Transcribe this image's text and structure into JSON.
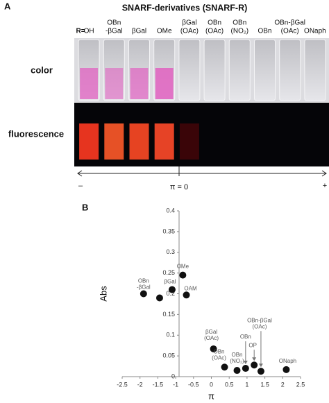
{
  "panel_a": {
    "label": "A",
    "title": "SNARF-derivatives (SNARF-R)",
    "r_label": "R=",
    "substituents": [
      [
        "OH"
      ],
      [
        "OBn",
        "-βGal"
      ],
      [
        "βGal"
      ],
      [
        "OMe"
      ],
      [
        "βGal",
        "(OAc)"
      ],
      [
        "OBn",
        "(OAc)"
      ],
      [
        "OBn",
        "(NO₂)"
      ],
      [
        "OBn"
      ],
      [
        "OBn-βGal",
        "(OAc)"
      ],
      [
        "ONaph"
      ]
    ],
    "row_labels": [
      "color",
      "fluorescence"
    ],
    "axis": {
      "minus": "–",
      "center": "π = 0",
      "plus": "+"
    }
  },
  "panel_b": {
    "label": "B"
  },
  "chart_data": {
    "type": "scatter",
    "xlabel": "π",
    "ylabel": "Abs",
    "color": "#111111",
    "x": [
      -1.9,
      -1.45,
      -1.1,
      -0.8,
      -0.7,
      0.06,
      0.37,
      0.72,
      0.96,
      1.2,
      1.39,
      2.1
    ],
    "values": [
      0.2,
      0.19,
      0.21,
      0.245,
      0.197,
      0.067,
      0.023,
      0.015,
      0.02,
      0.028,
      0.013,
      0.017
    ],
    "labels": [
      [
        "OBn",
        "-βGal"
      ],
      null,
      [
        "βGal"
      ],
      [
        "OMe"
      ],
      [
        "OAM"
      ],
      [
        "βGal",
        "(OAc)"
      ],
      [
        "OBn",
        "(OAc)"
      ],
      [
        "OBn",
        "(NO₂)"
      ],
      [
        "OBn"
      ],
      [
        "OP"
      ],
      [
        "OBn-βGal",
        "(OAc)"
      ],
      [
        "ONaph"
      ]
    ],
    "xlim": [
      -2.5,
      2.5
    ],
    "ylim": [
      0,
      0.4
    ],
    "xticks": [
      -2.5,
      -2,
      -1.5,
      -1,
      -0.5,
      0,
      0.5,
      1,
      1.5,
      2,
      2.5
    ],
    "yticks": [
      0,
      0.05,
      0.1,
      0.15,
      0.2,
      0.25,
      0.3,
      0.35,
      0.4
    ]
  }
}
